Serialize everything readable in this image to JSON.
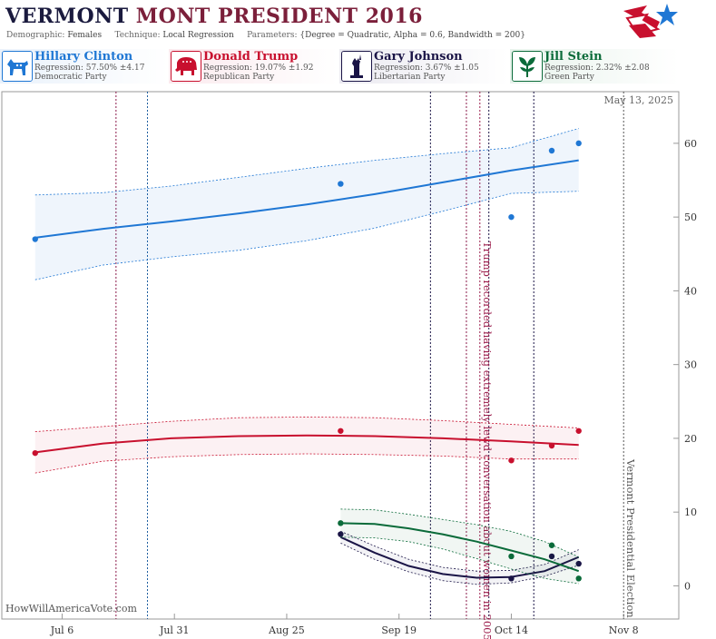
{
  "header": {
    "title_state": "VERMONT",
    "title_rest": "MONT PRESIDENT 2016",
    "demographic_label": "Demographic:",
    "demographic_value": "Females",
    "technique_label": "Technique:",
    "technique_value": "Local Regression",
    "parameters_label": "Parameters:",
    "parameters_value": "{Degree = Quadratic, Alpha = 0.6, Bandwidth = 200}"
  },
  "candidates": [
    {
      "name": "Hillary Clinton",
      "regression": "Regression: 57.50% ±4.17",
      "party": "Democratic Party",
      "color": "#1f77d4",
      "icon": "donkey-icon"
    },
    {
      "name": "Donald Trump",
      "regression": "Regression: 19.07% ±1.92",
      "party": "Republican Party",
      "color": "#c8102e",
      "icon": "elephant-icon"
    },
    {
      "name": "Gary Johnson",
      "regression": "Regression: 3.67% ±1.05",
      "party": "Libertarian Party",
      "color": "#1a1446",
      "icon": "statue-of-liberty-icon"
    },
    {
      "name": "Jill Stein",
      "regression": "Regression: 2.32% ±2.08",
      "party": "Green Party",
      "color": "#0b6b3a",
      "icon": "leaf-icon"
    }
  ],
  "chart_data": {
    "type": "line",
    "date_label": "May 13, 2025",
    "attribution": "HowWillAmericaVote.com",
    "x_ticks": [
      "Jul 6",
      "Jul 31",
      "Aug 25",
      "Sep 19",
      "Oct 14",
      "Nov 8"
    ],
    "y_ticks": [
      0,
      10,
      20,
      30,
      40,
      50,
      60
    ],
    "ylim": [
      -4.5,
      67
    ],
    "annotations": [
      {
        "text": "Trump recorded having extremely lewd conversation about women in 2005",
        "date": "2016-10-07",
        "color": "#9b1b4a"
      },
      {
        "text": "Vermont Presidential Election",
        "date": "2016-11-08",
        "color": "#555555"
      }
    ],
    "event_lines": [
      {
        "date": "2016-07-18",
        "color": "#8b1a4a"
      },
      {
        "date": "2016-07-25",
        "color": "#1f5fa0"
      },
      {
        "date": "2016-09-26",
        "color": "#1a1446"
      },
      {
        "date": "2016-10-04",
        "color": "#8b1a4a"
      },
      {
        "date": "2016-10-09",
        "color": "#1a1446"
      },
      {
        "date": "2016-10-19",
        "color": "#1a1446"
      }
    ],
    "series": [
      {
        "name": "Hillary Clinton",
        "color": "#1f77d4",
        "fill": "rgba(31,119,212,0.07)",
        "points": [
          [
            "2016-06-30",
            47
          ],
          [
            "2016-09-06",
            54.5
          ],
          [
            "2016-10-14",
            50
          ],
          [
            "2016-10-23",
            59
          ],
          [
            "2016-10-29",
            60
          ]
        ],
        "trend": {
          "start": "2016-06-30",
          "end": "2016-10-29",
          "values": [
            47.2,
            48.4,
            49.4,
            50.5,
            51.7,
            53.1,
            54.7,
            56.3,
            57.7
          ],
          "lower": [
            41.5,
            43.5,
            44.6,
            45.5,
            46.8,
            48.5,
            50.8,
            53.2,
            53.5
          ],
          "upper": [
            53.0,
            53.3,
            54.2,
            55.4,
            56.6,
            57.7,
            58.6,
            59.4,
            62
          ]
        }
      },
      {
        "name": "Donald Trump",
        "color": "#c8102e",
        "fill": "rgba(200,16,46,0.06)",
        "points": [
          [
            "2016-06-30",
            18
          ],
          [
            "2016-09-06",
            21
          ],
          [
            "2016-10-14",
            17
          ],
          [
            "2016-10-23",
            19
          ],
          [
            "2016-10-29",
            21
          ]
        ],
        "trend": {
          "start": "2016-06-30",
          "end": "2016-10-29",
          "values": [
            18.1,
            19.3,
            20.0,
            20.3,
            20.4,
            20.3,
            20.0,
            19.6,
            19.1
          ],
          "lower": [
            15.3,
            16.9,
            17.5,
            17.8,
            17.9,
            17.8,
            17.6,
            17.2,
            17.2
          ],
          "upper": [
            20.9,
            21.6,
            22.3,
            22.8,
            22.9,
            22.8,
            22.4,
            21.9,
            21.4
          ]
        }
      },
      {
        "name": "Gary Johnson",
        "color": "#1a1446",
        "fill": "rgba(26,20,70,0.05)",
        "points": [
          [
            "2016-09-06",
            7
          ],
          [
            "2016-10-14",
            1
          ],
          [
            "2016-10-23",
            4
          ],
          [
            "2016-10-29",
            3
          ]
        ],
        "trend": {
          "start": "2016-09-06",
          "end": "2016-10-29",
          "values": [
            6.6,
            4.5,
            2.7,
            1.6,
            1.1,
            1.2,
            2.0,
            3.9
          ],
          "lower": [
            5.8,
            3.6,
            1.9,
            0.7,
            0.2,
            0.4,
            1.3,
            2.8
          ],
          "upper": [
            7.4,
            5.4,
            3.6,
            2.5,
            2.0,
            2.1,
            2.9,
            4.9
          ]
        }
      },
      {
        "name": "Jill Stein",
        "color": "#0b6b3a",
        "fill": "rgba(11,107,58,0.06)",
        "points": [
          [
            "2016-09-06",
            8.5
          ],
          [
            "2016-10-14",
            4
          ],
          [
            "2016-10-23",
            5.5
          ],
          [
            "2016-10-29",
            1
          ]
        ],
        "trend": {
          "start": "2016-09-06",
          "end": "2016-10-29",
          "values": [
            8.5,
            8.4,
            7.8,
            7.0,
            6.0,
            4.8,
            3.6,
            2.0
          ],
          "lower": [
            6.6,
            6.5,
            6.0,
            5.0,
            3.7,
            2.3,
            1.0,
            0.3
          ],
          "upper": [
            10.4,
            10.3,
            9.7,
            9.0,
            8.3,
            7.4,
            6.0,
            3.9
          ]
        }
      }
    ]
  }
}
